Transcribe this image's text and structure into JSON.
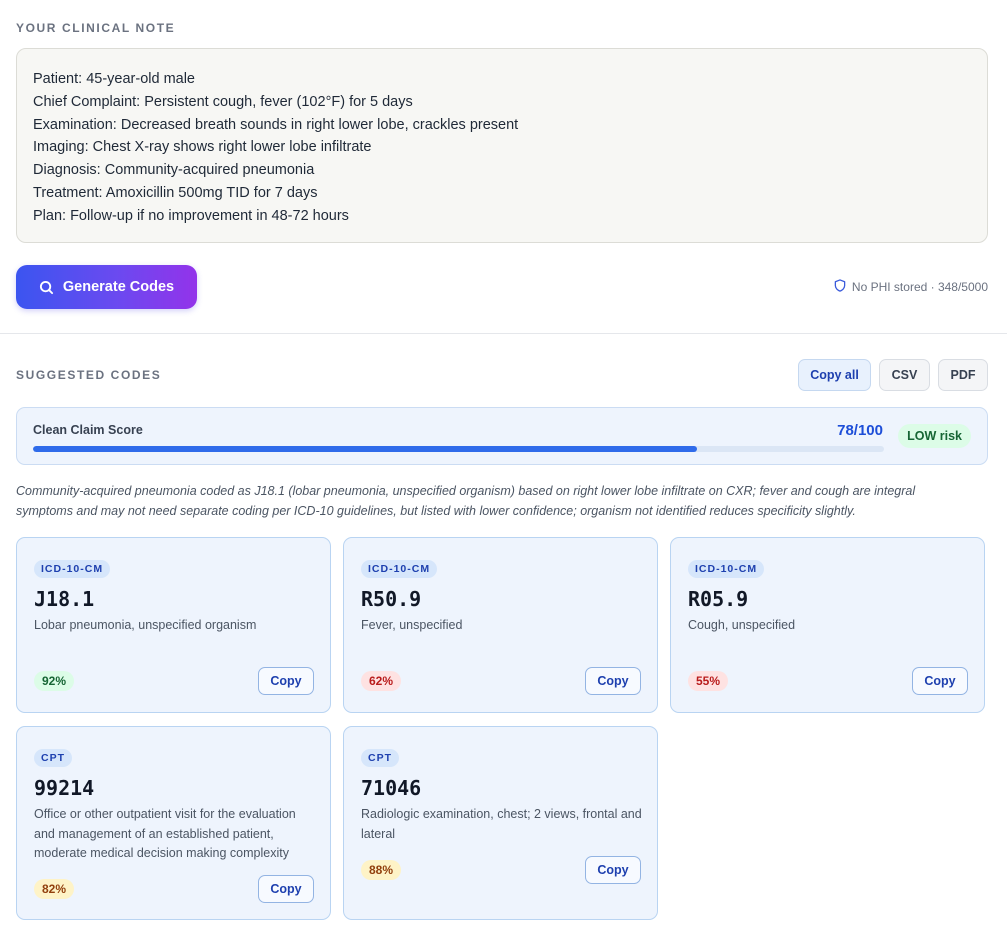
{
  "note_section": {
    "title": "YOUR CLINICAL NOTE",
    "lines": [
      "Patient: 45-year-old male",
      "Chief Complaint: Persistent cough, fever (102°F) for 5 days",
      "Examination: Decreased breath sounds in right lower lobe, crackles present",
      "Imaging: Chest X-ray shows right lower lobe infiltrate",
      "Diagnosis: Community-acquired pneumonia",
      "Treatment: Amoxicillin 500mg TID for 7 days",
      "Plan: Follow-up if no improvement in 48-72 hours"
    ],
    "generate_button": "Generate Codes",
    "generate_icon": "search-icon",
    "privacy_icon": "shield-icon",
    "privacy_text": "No PHI stored · 348/5000"
  },
  "codes_section": {
    "title": "SUGGESTED CODES",
    "actions": {
      "copy_all": "Copy all",
      "csv": "CSV",
      "pdf": "PDF"
    },
    "score": {
      "label": "Clean Claim Score",
      "value_text": "78/100",
      "value": 78,
      "max": 100,
      "risk": "LOW risk"
    },
    "summary": "Community-acquired pneumonia coded as J18.1 (lobar pneumonia, unspecified organism) based on right lower lobe infiltrate on CXR; fever and cough are integral symptoms and may not need separate coding per ICD-10 guidelines, but listed with lower confidence; organism not identified reduces specificity slightly.",
    "cards": [
      {
        "type": "ICD-10-CM",
        "code": "J18.1",
        "description": "Lobar pneumonia, unspecified organism",
        "confidence": "92%",
        "copy": "Copy"
      },
      {
        "type": "ICD-10-CM",
        "code": "R50.9",
        "description": "Fever, unspecified",
        "confidence": "62%",
        "copy": "Copy"
      },
      {
        "type": "ICD-10-CM",
        "code": "R05.9",
        "description": "Cough, unspecified",
        "confidence": "55%",
        "copy": "Copy"
      },
      {
        "type": "CPT",
        "code": "99214",
        "description": "Office or other outpatient visit for the evaluation and management of an established patient, moderate medical decision making complexity",
        "confidence": "82%",
        "copy": "Copy"
      },
      {
        "type": "CPT",
        "code": "71046",
        "description": "Radiologic examination, chest; 2 views, frontal and lateral",
        "confidence": "88%",
        "copy": "Copy"
      }
    ],
    "colors": {
      "accent": "#1d4ed8",
      "confidence_high": "#166534",
      "confidence_mid": "#92400e",
      "confidence_low": "#b91c1c"
    }
  }
}
